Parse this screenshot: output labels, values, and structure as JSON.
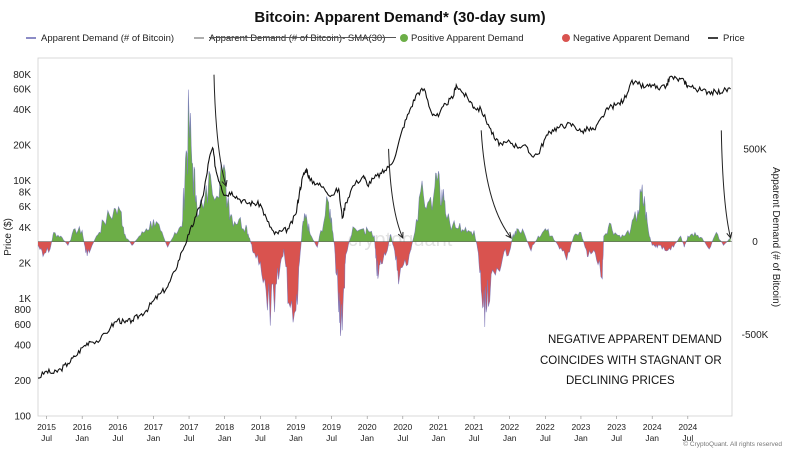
{
  "chart_data": {
    "type": "area",
    "title": "Bitcoin: Apparent Demand* (30-day sum)",
    "legend": [
      {
        "name": "Apparent Demand (# of Bitcoin)",
        "color": "#6f6fb8",
        "style": "line"
      },
      {
        "name": "Apparent Demand (# of Bitcoin)- SMA(30)",
        "color": "#999999",
        "style": "strikethrough"
      },
      {
        "name": "Positive Apparent Demand",
        "color": "#6cae47",
        "style": "dot"
      },
      {
        "name": "Negative Apparent Demand",
        "color": "#d9534f",
        "style": "dot"
      },
      {
        "name": "Price",
        "color": "#111111",
        "style": "line"
      }
    ],
    "left_axis": {
      "label": "Price ($)",
      "scale": "log",
      "ticks": [
        100,
        200,
        400,
        600,
        800,
        1000,
        2000,
        4000,
        6000,
        8000,
        10000,
        20000,
        40000,
        60000,
        80000
      ],
      "tick_labels": [
        "100",
        "200",
        "400",
        "600",
        "800",
        "1K",
        "2K",
        "4K",
        "6K",
        "8K",
        "10K",
        "20K",
        "40K",
        "60K",
        "80K"
      ]
    },
    "right_axis": {
      "label": "Apparent Demand (# of Bitcoin)",
      "ticks": [
        500000,
        0,
        -500000
      ],
      "tick_labels": [
        "500K",
        "0",
        "-500K"
      ],
      "ylim": [
        -940000,
        990000
      ]
    },
    "x_axis": {
      "xlim": [
        2014.88,
        2024.62
      ],
      "ticks": [
        {
          "x": 2015.0,
          "year": "2015",
          "half": "Jul"
        },
        {
          "x": 2015.5,
          "year": "2016",
          "half": "Jan"
        },
        {
          "x": 2016.0,
          "year": "2016",
          "half": "Jul"
        },
        {
          "x": 2016.5,
          "year": "2017",
          "half": "Jan"
        },
        {
          "x": 2017.0,
          "year": "2017",
          "half": "Jul"
        },
        {
          "x": 2017.5,
          "year": "2018",
          "half": "Jan"
        },
        {
          "x": 2018.0,
          "year": "2018",
          "half": "Jul"
        },
        {
          "x": 2018.5,
          "year": "2019",
          "half": "Jan"
        },
        {
          "x": 2019.0,
          "year": "2019",
          "half": "Jul"
        },
        {
          "x": 2019.5,
          "year": "2020",
          "half": "Jan"
        },
        {
          "x": 2020.0,
          "year": "2020",
          "half": "Jul"
        },
        {
          "x": 2020.5,
          "year": "2021",
          "half": "Jan"
        },
        {
          "x": 2021.0,
          "year": "2021",
          "half": "Jul"
        },
        {
          "x": 2021.5,
          "year": "2022",
          "half": "Jan"
        },
        {
          "x": 2022.0,
          "year": "2022",
          "half": "Jul"
        },
        {
          "x": 2022.5,
          "year": "2023",
          "half": "Jan"
        },
        {
          "x": 2023.0,
          "year": "2023",
          "half": "Jul"
        },
        {
          "x": 2023.5,
          "year": "2024",
          "half": "Jan"
        },
        {
          "x": 2024.0,
          "year": "2024",
          "half": "Jul"
        }
      ]
    },
    "demand": {
      "name": "Apparent Demand (# of Bitcoin)",
      "points": [
        [
          2014.88,
          -20000
        ],
        [
          2014.95,
          -80000
        ],
        [
          2015.05,
          -40000
        ],
        [
          2015.1,
          50000
        ],
        [
          2015.2,
          30000
        ],
        [
          2015.3,
          -20000
        ],
        [
          2015.4,
          70000
        ],
        [
          2015.5,
          60000
        ],
        [
          2015.55,
          -60000
        ],
        [
          2015.6,
          -60000
        ],
        [
          2015.7,
          30000
        ],
        [
          2015.8,
          110000
        ],
        [
          2015.95,
          180000
        ],
        [
          2016.05,
          160000
        ],
        [
          2016.1,
          40000
        ],
        [
          2016.2,
          -20000
        ],
        [
          2016.3,
          30000
        ],
        [
          2016.4,
          70000
        ],
        [
          2016.5,
          120000
        ],
        [
          2016.6,
          60000
        ],
        [
          2016.7,
          -30000
        ],
        [
          2016.8,
          50000
        ],
        [
          2016.9,
          80000
        ],
        [
          2016.95,
          450000
        ],
        [
          2017.0,
          680000
        ],
        [
          2017.05,
          420000
        ],
        [
          2017.1,
          250000
        ],
        [
          2017.2,
          180000
        ],
        [
          2017.3,
          360000
        ],
        [
          2017.45,
          430000
        ],
        [
          2017.55,
          240000
        ],
        [
          2017.6,
          140000
        ],
        [
          2017.7,
          120000
        ],
        [
          2017.8,
          90000
        ],
        [
          2017.85,
          20000
        ],
        [
          2017.9,
          -60000
        ],
        [
          2018.0,
          -110000
        ],
        [
          2018.1,
          -370000
        ],
        [
          2018.2,
          -380000
        ],
        [
          2018.27,
          -160000
        ],
        [
          2018.33,
          -40000
        ],
        [
          2018.4,
          -330000
        ],
        [
          2018.5,
          -370000
        ],
        [
          2018.55,
          -110000
        ],
        [
          2018.6,
          110000
        ],
        [
          2018.65,
          130000
        ],
        [
          2018.7,
          40000
        ],
        [
          2018.8,
          -30000
        ],
        [
          2018.85,
          60000
        ],
        [
          2018.95,
          220000
        ],
        [
          2019.0,
          130000
        ],
        [
          2019.05,
          -70000
        ],
        [
          2019.1,
          -380000
        ],
        [
          2019.13,
          -480000
        ],
        [
          2019.18,
          -250000
        ],
        [
          2019.2,
          -70000
        ],
        [
          2019.3,
          80000
        ],
        [
          2019.45,
          70000
        ],
        [
          2019.5,
          70000
        ],
        [
          2019.6,
          30000
        ],
        [
          2019.62,
          -90000
        ],
        [
          2019.65,
          -200000
        ],
        [
          2019.7,
          -120000
        ],
        [
          2019.77,
          -60000
        ],
        [
          2019.83,
          40000
        ],
        [
          2019.9,
          -100000
        ],
        [
          2019.95,
          -200000
        ],
        [
          2020.05,
          -130000
        ],
        [
          2020.15,
          20000
        ],
        [
          2020.25,
          270000
        ],
        [
          2020.35,
          210000
        ],
        [
          2020.45,
          300000
        ],
        [
          2020.5,
          380000
        ],
        [
          2020.55,
          280000
        ],
        [
          2020.6,
          150000
        ],
        [
          2020.7,
          90000
        ],
        [
          2020.8,
          100000
        ],
        [
          2020.9,
          50000
        ],
        [
          2021.0,
          60000
        ],
        [
          2021.05,
          -40000
        ],
        [
          2021.1,
          -260000
        ],
        [
          2021.15,
          -460000
        ],
        [
          2021.2,
          -350000
        ],
        [
          2021.3,
          -180000
        ],
        [
          2021.4,
          -90000
        ],
        [
          2021.5,
          -50000
        ],
        [
          2021.55,
          40000
        ],
        [
          2021.6,
          70000
        ],
        [
          2021.7,
          50000
        ],
        [
          2021.8,
          -50000
        ],
        [
          2021.9,
          30000
        ],
        [
          2022.0,
          70000
        ],
        [
          2022.1,
          30000
        ],
        [
          2022.2,
          -40000
        ],
        [
          2022.3,
          -100000
        ],
        [
          2022.4,
          30000
        ],
        [
          2022.5,
          50000
        ],
        [
          2022.55,
          -20000
        ],
        [
          2022.6,
          -80000
        ],
        [
          2022.7,
          -60000
        ],
        [
          2022.8,
          -200000
        ],
        [
          2022.82,
          30000
        ],
        [
          2022.9,
          100000
        ],
        [
          2023.0,
          40000
        ],
        [
          2023.1,
          30000
        ],
        [
          2023.2,
          70000
        ],
        [
          2023.3,
          170000
        ],
        [
          2023.35,
          270000
        ],
        [
          2023.4,
          200000
        ],
        [
          2023.45,
          50000
        ],
        [
          2023.5,
          -20000
        ],
        [
          2023.55,
          -30000
        ],
        [
          2023.6,
          -20000
        ],
        [
          2023.7,
          -50000
        ],
        [
          2023.8,
          -30000
        ],
        [
          2023.9,
          30000
        ],
        [
          2023.95,
          -30000
        ],
        [
          2024.0,
          30000
        ],
        [
          2024.1,
          50000
        ],
        [
          2024.2,
          20000
        ],
        [
          2024.3,
          -40000
        ],
        [
          2024.4,
          50000
        ],
        [
          2024.5,
          -20000
        ],
        [
          2024.6,
          20000
        ]
      ]
    },
    "price": {
      "name": "Price",
      "points": [
        [
          2014.88,
          210
        ],
        [
          2015.0,
          240
        ],
        [
          2015.1,
          230
        ],
        [
          2015.2,
          250
        ],
        [
          2015.3,
          280
        ],
        [
          2015.4,
          320
        ],
        [
          2015.5,
          380
        ],
        [
          2015.6,
          430
        ],
        [
          2015.75,
          440
        ],
        [
          2015.9,
          570
        ],
        [
          2016.0,
          660
        ],
        [
          2016.1,
          620
        ],
        [
          2016.2,
          650
        ],
        [
          2016.3,
          710
        ],
        [
          2016.4,
          790
        ],
        [
          2016.5,
          950
        ],
        [
          2016.6,
          1100
        ],
        [
          2016.7,
          1250
        ],
        [
          2016.8,
          1700
        ],
        [
          2016.9,
          2500
        ],
        [
          2017.0,
          3500
        ],
        [
          2017.1,
          5000
        ],
        [
          2017.2,
          7500
        ],
        [
          2017.28,
          15000
        ],
        [
          2017.33,
          19000
        ],
        [
          2017.38,
          12000
        ],
        [
          2017.45,
          9000
        ],
        [
          2017.5,
          7500
        ],
        [
          2017.6,
          8000
        ],
        [
          2017.7,
          7000
        ],
        [
          2017.8,
          6500
        ],
        [
          2017.9,
          6400
        ],
        [
          2018.0,
          6300
        ],
        [
          2018.1,
          4500
        ],
        [
          2018.2,
          3500
        ],
        [
          2018.3,
          3700
        ],
        [
          2018.4,
          3900
        ],
        [
          2018.5,
          5200
        ],
        [
          2018.55,
          8000
        ],
        [
          2018.6,
          11000
        ],
        [
          2018.65,
          12500
        ],
        [
          2018.7,
          10000
        ],
        [
          2018.8,
          9500
        ],
        [
          2018.9,
          8500
        ],
        [
          2019.0,
          7500
        ],
        [
          2019.1,
          8500
        ],
        [
          2019.15,
          4800
        ],
        [
          2019.2,
          6500
        ],
        [
          2019.3,
          9000
        ],
        [
          2019.45,
          11000
        ],
        [
          2019.5,
          9200
        ],
        [
          2019.6,
          10500
        ],
        [
          2019.7,
          11500
        ],
        [
          2019.8,
          13000
        ],
        [
          2019.9,
          16500
        ],
        [
          2020.0,
          28000
        ],
        [
          2020.1,
          40000
        ],
        [
          2020.2,
          55000
        ],
        [
          2020.3,
          60000
        ],
        [
          2020.4,
          38000
        ],
        [
          2020.5,
          35000
        ],
        [
          2020.6,
          45000
        ],
        [
          2020.7,
          50000
        ],
        [
          2020.75,
          65000
        ],
        [
          2020.85,
          55000
        ],
        [
          2020.95,
          47000
        ],
        [
          2021.0,
          42000
        ],
        [
          2021.1,
          40000
        ],
        [
          2021.2,
          30000
        ],
        [
          2021.3,
          22000
        ],
        [
          2021.4,
          20000
        ],
        [
          2021.5,
          21500
        ],
        [
          2021.6,
          19500
        ],
        [
          2021.7,
          20000
        ],
        [
          2021.8,
          16500
        ],
        [
          2021.9,
          16800
        ],
        [
          2022.0,
          23000
        ],
        [
          2022.1,
          27000
        ],
        [
          2022.2,
          28500
        ],
        [
          2022.3,
          30000
        ],
        [
          2022.4,
          29500
        ],
        [
          2022.5,
          26000
        ],
        [
          2022.6,
          27500
        ],
        [
          2022.7,
          27000
        ],
        [
          2022.8,
          35000
        ],
        [
          2022.9,
          42000
        ],
        [
          2023.0,
          44000
        ],
        [
          2023.1,
          48000
        ],
        [
          2023.2,
          68000
        ],
        [
          2023.3,
          66000
        ],
        [
          2023.4,
          62000
        ],
        [
          2023.5,
          65000
        ],
        [
          2023.6,
          59000
        ],
        [
          2023.7,
          64000
        ],
        [
          2023.75,
          76000
        ],
        [
          2023.85,
          73000
        ],
        [
          2023.95,
          70000
        ],
        [
          2024.0,
          64000
        ],
        [
          2024.1,
          61000
        ],
        [
          2024.2,
          58000
        ],
        [
          2024.3,
          57000
        ],
        [
          2024.4,
          56000
        ],
        [
          2024.5,
          58000
        ],
        [
          2024.6,
          60000
        ]
      ]
    },
    "annotations": {
      "text_lines": [
        "NEGATIVE APPARENT DEMAND",
        "COINCIDES WITH STAGNANT OR",
        "DECLINING PRICES"
      ],
      "arrows": [
        {
          "from": [
            2017.35,
            900000
          ],
          "to": [
            2017.52,
            300000
          ]
        },
        {
          "from": [
            2019.8,
            500000
          ],
          "to": [
            2020.0,
            20000
          ]
        },
        {
          "from": [
            2021.1,
            600000
          ],
          "to": [
            2021.52,
            20000
          ]
        },
        {
          "from": [
            2024.47,
            600000
          ],
          "to": [
            2024.6,
            20000
          ]
        }
      ]
    },
    "watermark": "cryptoquant",
    "credit": "© CryptoQuant. All rights reserved",
    "grid": false
  }
}
